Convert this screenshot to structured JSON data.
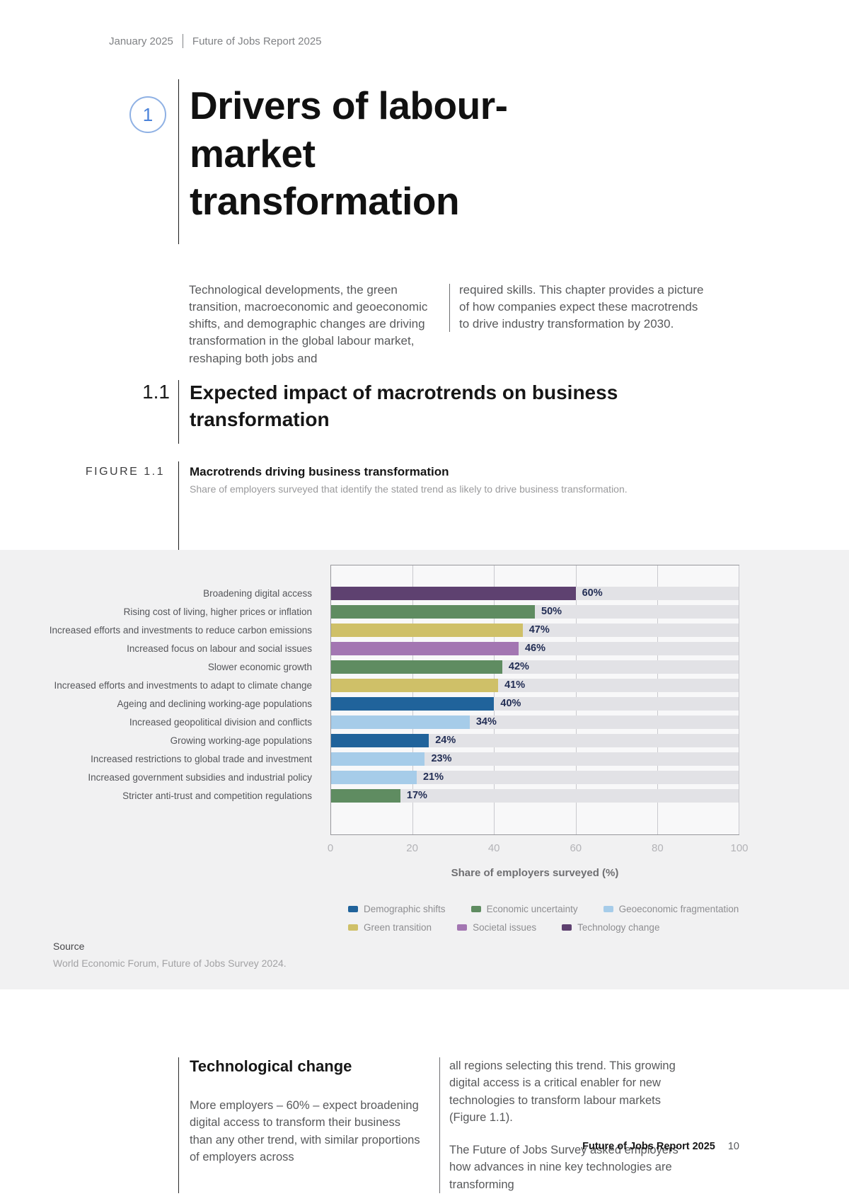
{
  "page": {
    "header": {
      "date": "January 2025",
      "report": "Future of Jobs Report 2025"
    },
    "chapter": {
      "number": "1",
      "title": "Drivers of labour-market transformation",
      "accent_color": "#4a82d9"
    },
    "intro": {
      "col1": "Technological developments, the green transition, macroeconomic and geoeconomic shifts, and demographic changes are driving transformation in the global labour market, reshaping both jobs and",
      "col2": "required skills. This chapter provides a picture of how companies expect these macrotrends to drive industry transformation by 2030."
    },
    "section": {
      "number": "1.1",
      "title": "Expected impact of macrotrends on business transformation"
    },
    "figure": {
      "label": "FIGURE 1.1",
      "title": "Macrotrends driving business transformation",
      "subtitle": "Share of employers surveyed that identify the stated trend as likely to drive business transformation."
    },
    "source": {
      "label": "Source",
      "text": "World Economic Forum, Future of Jobs Survey 2024."
    },
    "tech_section": {
      "heading": "Technological change",
      "col1": "More employers – 60% – expect broadening digital access to transform their business than any other trend, with similar proportions of employers across",
      "col2_p1": "all regions selecting this trend. This growing digital access is a critical enabler for new technologies to transform labour markets (Figure 1.1).",
      "col2_p2": "The Future of Jobs Survey asked employers how advances in nine key technologies are transforming"
    },
    "footer": {
      "report": "Future of Jobs Report 2025",
      "page_number": "10"
    }
  },
  "chart_data": {
    "type": "bar",
    "orientation": "horizontal",
    "title": "Macrotrends driving business transformation",
    "subtitle": "Share of employers surveyed that identify the stated trend as likely to drive business transformation.",
    "xlabel": "Share of employers surveyed (%)",
    "xlim": [
      0,
      100
    ],
    "xticks": [
      0,
      20,
      40,
      60,
      80,
      100
    ],
    "grid": true,
    "legend_position": "bottom",
    "series_colors": {
      "Demographic shifts": "#20639b",
      "Economic uncertainty": "#5f8c61",
      "Geoeconomic fragmentation": "#a6cce9",
      "Green transition": "#cfc068",
      "Societal issues": "#a376b2",
      "Technology change": "#5e4170"
    },
    "legend_rows": [
      [
        "Demographic shifts",
        "Economic uncertainty",
        "Geoeconomic fragmentation"
      ],
      [
        "Green transition",
        "Societal issues",
        "Technology change"
      ]
    ],
    "bars": [
      {
        "label": "Broadening digital access",
        "value": 60,
        "series": "Technology change"
      },
      {
        "label": "Rising cost of living, higher prices or inflation",
        "value": 50,
        "series": "Economic uncertainty"
      },
      {
        "label": "Increased efforts and investments to reduce carbon emissions",
        "value": 47,
        "series": "Green transition"
      },
      {
        "label": "Increased focus on labour and social issues",
        "value": 46,
        "series": "Societal issues"
      },
      {
        "label": "Slower economic growth",
        "value": 42,
        "series": "Economic uncertainty"
      },
      {
        "label": "Increased efforts and investments to adapt to climate change",
        "value": 41,
        "series": "Green transition"
      },
      {
        "label": "Ageing and declining working-age populations",
        "value": 40,
        "series": "Demographic shifts"
      },
      {
        "label": "Increased geopolitical division and conflicts",
        "value": 34,
        "series": "Geoeconomic fragmentation"
      },
      {
        "label": "Growing working-age populations",
        "value": 24,
        "series": "Demographic shifts"
      },
      {
        "label": "Increased restrictions to global trade and investment",
        "value": 23,
        "series": "Geoeconomic fragmentation"
      },
      {
        "label": "Increased government subsidies and industrial policy",
        "value": 21,
        "series": "Geoeconomic fragmentation"
      },
      {
        "label": "Stricter anti-trust and competition regulations",
        "value": 17,
        "series": "Economic uncertainty"
      }
    ]
  }
}
